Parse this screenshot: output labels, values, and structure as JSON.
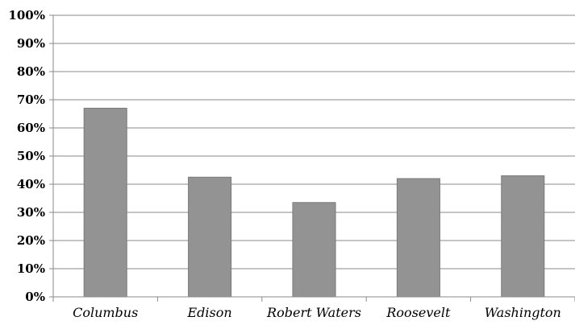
{
  "chart_data": {
    "type": "bar",
    "categories": [
      "Columbus",
      "Edison",
      "Robert Waters",
      "Roosevelt",
      "Washington"
    ],
    "series": [
      {
        "values": [
          0.67,
          0.425,
          0.335,
          0.42,
          0.43
        ]
      }
    ],
    "y_ticks": [
      "0%",
      "10%",
      "20%",
      "30%",
      "40%",
      "50%",
      "60%",
      "70%",
      "80%",
      "90%",
      "100%"
    ],
    "ylim": [
      0,
      1
    ],
    "grid": true,
    "legend": "none",
    "bar_color": "#939393",
    "bar_edge_color": "#7a7a7a",
    "grid_color": "#8a8a8a"
  }
}
